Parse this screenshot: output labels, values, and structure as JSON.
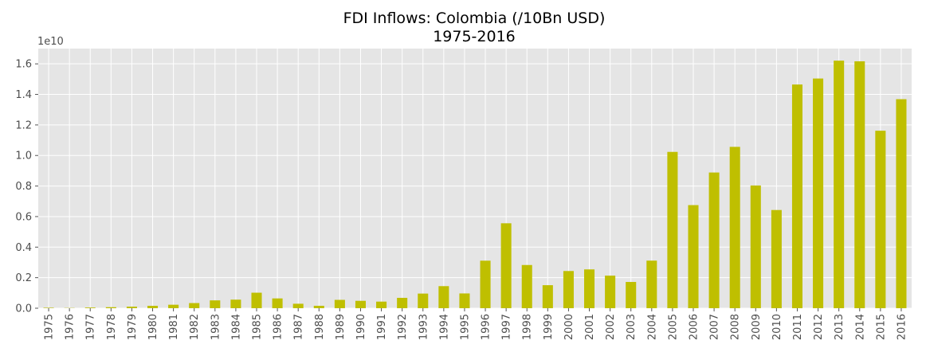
{
  "chart_data": {
    "type": "bar",
    "title": "FDI Inflows: Colombia (/10Bn USD)",
    "subtitle": "1975-2016",
    "axis_offset_text": "1e10",
    "xlabel": "",
    "ylabel": "",
    "ylim": [
      0,
      17000000000.0
    ],
    "yticks": [
      0,
      2000000000.0,
      4000000000.0,
      6000000000.0,
      8000000000.0,
      10000000000.0,
      12000000000.0,
      14000000000.0,
      16000000000.0
    ],
    "ytick_labels": [
      "0.0",
      "0.2",
      "0.4",
      "0.6",
      "0.8",
      "1.0",
      "1.2",
      "1.4",
      "1.6"
    ],
    "grid": true,
    "bar_color": "#bfbf00",
    "background_color": "#e5e5e5",
    "categories": [
      "1975",
      "1976",
      "1977",
      "1978",
      "1979",
      "1980",
      "1981",
      "1982",
      "1983",
      "1984",
      "1985",
      "1986",
      "1987",
      "1988",
      "1989",
      "1990",
      "1991",
      "1992",
      "1993",
      "1994",
      "1995",
      "1996",
      "1997",
      "1998",
      "1999",
      "2000",
      "2001",
      "2002",
      "2003",
      "2004",
      "2005",
      "2006",
      "2007",
      "2008",
      "2009",
      "2010",
      "2011",
      "2012",
      "2013",
      "2014",
      "2015",
      "2016"
    ],
    "values": [
      30000000,
      14000000,
      43000000,
      67000000,
      103000000,
      157000000,
      228000000,
      337000000,
      514000000,
      561000000,
      1016000000,
      642000000,
      293000000,
      159000000,
      547000000,
      484000000,
      433000000,
      679000000,
      959000000,
      1446000000,
      968000000,
      3112000000,
      5562000000,
      2829000000,
      1508000000,
      2436000000,
      2542000000,
      2134000000,
      1720000000,
      3116000000,
      10235000000,
      6751000000,
      8886000000,
      10565000000,
      8035000000,
      6430000000,
      14648000000,
      15040000000,
      16209000000,
      16167000000,
      11621000000,
      13687000000
    ]
  }
}
